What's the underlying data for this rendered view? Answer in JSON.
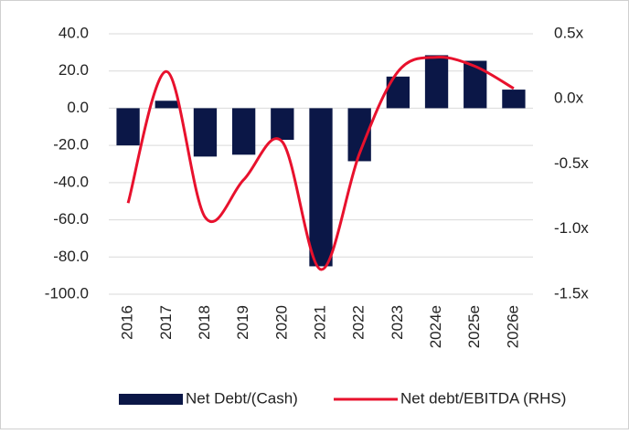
{
  "chart_data": {
    "type": "bar_line",
    "categories": [
      "2016",
      "2017",
      "2018",
      "2019",
      "2020",
      "2021",
      "2022",
      "2023",
      "2024e",
      "2025e",
      "2026e"
    ],
    "series": [
      {
        "name": "Net Debt/(Cash)",
        "color": "#0b1747",
        "type": "bar",
        "values": [
          -20,
          4,
          -26,
          -25,
          -17,
          -85,
          -28.5,
          17,
          28.5,
          25.5,
          10
        ]
      },
      {
        "name": "Net debt/EBITDA (RHS)",
        "color": "#e8112d",
        "type": "line",
        "axis": "y2",
        "smooth": true,
        "values": [
          -0.8,
          0.21,
          -0.91,
          -0.62,
          -0.33,
          -1.31,
          -0.42,
          0.21,
          0.32,
          0.25,
          0.08
        ]
      }
    ],
    "ylim": [
      -100,
      40
    ],
    "yticks": [
      {
        "value": -100,
        "label": "-100.0"
      },
      {
        "value": -80,
        "label": "-80.0"
      },
      {
        "value": -60,
        "label": "-60.0"
      },
      {
        "value": -40,
        "label": "-40.0"
      },
      {
        "value": -20,
        "label": "-20.0"
      },
      {
        "value": 0,
        "label": "0.0"
      },
      {
        "value": 20,
        "label": "20.0"
      },
      {
        "value": 40,
        "label": "40.0"
      }
    ],
    "y2lim": [
      -1.5,
      0.5
    ],
    "y2ticks": [
      {
        "value": -1.5,
        "label": "-1.5x"
      },
      {
        "value": -1,
        "label": "-1.0x"
      },
      {
        "value": -0.5,
        "label": "-0.5x"
      },
      {
        "value": 0,
        "label": "0.0x"
      },
      {
        "value": 0.5,
        "label": "0.5x"
      }
    ],
    "grid": true,
    "legend": "bottom"
  }
}
